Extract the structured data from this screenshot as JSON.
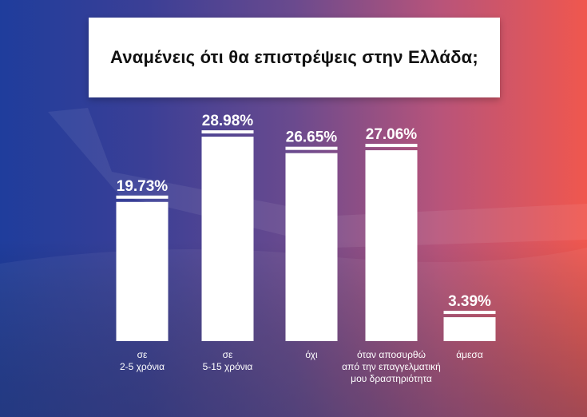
{
  "title": "Αναμένεις ότι θα επιστρέψεις στην Ελλάδα;",
  "chart_data": {
    "type": "bar",
    "title": "Αναμένεις ότι θα επιστρέψεις στην Ελλάδα;",
    "categories": [
      [
        "σε",
        "2-5 χρόνια"
      ],
      [
        "σε",
        "5-15 χρόνια"
      ],
      [
        "όχι"
      ],
      [
        "όταν αποσυρθώ",
        "από την επαγγελματική",
        "μου δραστηριότητα"
      ],
      [
        "άμεσα"
      ]
    ],
    "values": [
      19.73,
      28.98,
      26.65,
      27.06,
      3.39
    ],
    "value_labels": [
      "19.73%",
      "28.98%",
      "26.65%",
      "27.06%",
      "3.39%"
    ],
    "ylim": [
      0,
      30
    ],
    "grid": false,
    "bar_color": "#ffffff"
  },
  "colors": {
    "gradient_left": "#1f3d9c",
    "gradient_right": "#f0574e",
    "bar": "#ffffff",
    "title_box": "#ffffff",
    "title_text": "#111111"
  }
}
